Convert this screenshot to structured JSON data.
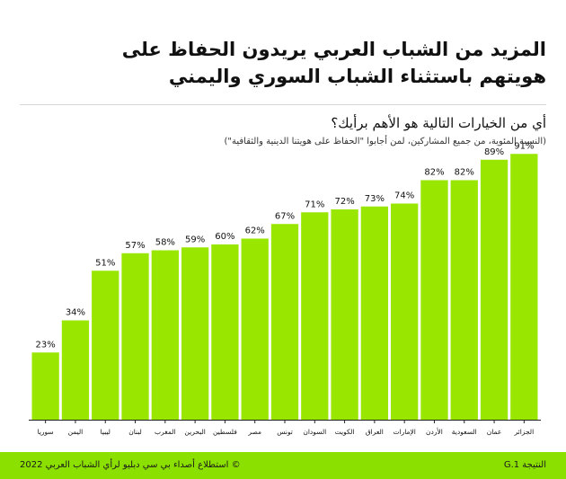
{
  "header": {
    "title_line1": "المزيد من الشباب العربي يريدون الحفاظ على",
    "title_line2": "هويتهم باستثناء الشباب السوري واليمني",
    "question": "أي من الخيارات التالية هو الأهم برأيك؟",
    "note": "(النسبة المئوية، من جميع المشاركين، لمن أجابوا \"الحفاظ على هويتنا الدينية والثقافية\")"
  },
  "chart_data": {
    "type": "bar",
    "title": "أي من الخيارات التالية هو الأهم برأيك؟",
    "categories": [
      "سوريا",
      "اليمن",
      "ليبيا",
      "لبنان",
      "المغرب",
      "البحرين",
      "فلسطين",
      "مصر",
      "تونس",
      "السودان",
      "الكويت",
      "العراق",
      "الإمارات",
      "الأردن",
      "السعودية",
      "عمان",
      "الجزائر"
    ],
    "values": [
      23,
      34,
      51,
      57,
      58,
      59,
      60,
      62,
      67,
      71,
      72,
      73,
      74,
      82,
      82,
      89,
      91
    ],
    "value_labels": [
      "23%",
      "34%",
      "51%",
      "57%",
      "58%",
      "59%",
      "60%",
      "62%",
      "67%",
      "71%",
      "72%",
      "73%",
      "74%",
      "82%",
      "82%",
      "89%",
      "91%"
    ],
    "ylim": [
      0,
      100
    ],
    "grid": false,
    "bar_color": "#99e600"
  },
  "footer": {
    "source": "© استطلاع أصداء بي سي دبليو لرأي الشباب العربي 2022",
    "result": "النتيجة 1.G"
  }
}
